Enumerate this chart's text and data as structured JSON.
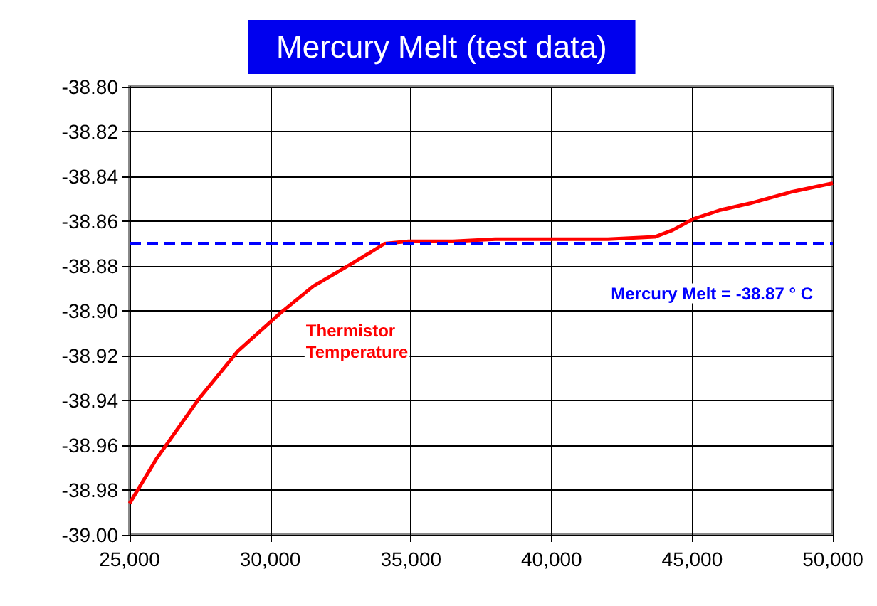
{
  "chart_data": {
    "type": "line",
    "title": "Mercury Melt (test data)",
    "series": [
      {
        "name": "Thermistor Temperature",
        "color": "#ff0000",
        "x": [
          25000,
          25960,
          27480,
          28850,
          30360,
          31530,
          32890,
          33550,
          34060,
          34920,
          36500,
          38000,
          40000,
          42000,
          43670,
          44300,
          45040,
          46000,
          47060,
          48500,
          50000
        ],
        "values": [
          -38.986,
          -38.966,
          -38.939,
          -38.918,
          -38.901,
          -38.889,
          -38.879,
          -38.874,
          -38.87,
          -38.869,
          -38.869,
          -38.868,
          -38.868,
          -38.868,
          -38.867,
          -38.864,
          -38.859,
          -38.855,
          -38.852,
          -38.847,
          -38.843
        ]
      }
    ],
    "xlim": [
      25000,
      50000
    ],
    "xticks": [
      {
        "value": 25000,
        "label": "25,000"
      },
      {
        "value": 30000,
        "label": "30,000"
      },
      {
        "value": 35000,
        "label": "35,000"
      },
      {
        "value": 40000,
        "label": "40,000"
      },
      {
        "value": 45000,
        "label": "45,000"
      },
      {
        "value": 50000,
        "label": "50,000"
      }
    ],
    "ylim": [
      -39,
      -38.8
    ],
    "yticks": [
      {
        "value": -39,
        "label": "-39.00"
      },
      {
        "value": -38.98,
        "label": "-38.98"
      },
      {
        "value": -38.96,
        "label": "-38.96"
      },
      {
        "value": -38.94,
        "label": "-38.94"
      },
      {
        "value": -38.92,
        "label": "-38.92"
      },
      {
        "value": -38.9,
        "label": "-38.90"
      },
      {
        "value": -38.88,
        "label": "-38.88"
      },
      {
        "value": -38.86,
        "label": "-38.86"
      },
      {
        "value": -38.84,
        "label": "-38.84"
      },
      {
        "value": -38.82,
        "label": "-38.82"
      },
      {
        "value": -38.8,
        "label": "-38.80"
      }
    ],
    "ref_lines": [
      {
        "axis": "y",
        "value": -38.87,
        "label": "Mercury Melt = -38.87 ° C",
        "color": "#0000ff",
        "line_style": "dashed"
      }
    ],
    "grid": true,
    "legend": false,
    "marker": "none",
    "line_style": "solid"
  }
}
